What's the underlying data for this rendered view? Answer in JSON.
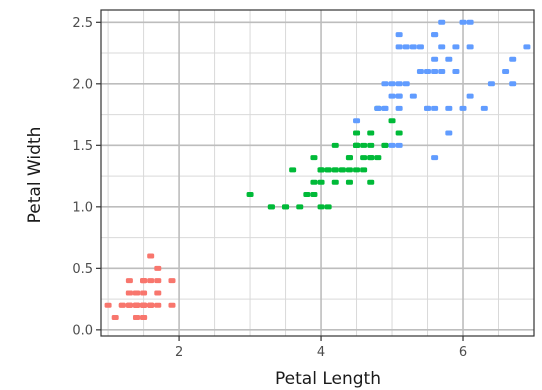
{
  "chart_data": {
    "type": "scatter",
    "title": "",
    "xlabel": "Petal Length",
    "ylabel": "Petal Width",
    "xlim": [
      0.9,
      7.0
    ],
    "ylim": [
      -0.05,
      2.6
    ],
    "x_ticks": [
      2,
      4,
      6
    ],
    "x_tick_labels": [
      "2",
      "4",
      "6"
    ],
    "y_ticks": [
      0.0,
      0.5,
      1.0,
      1.5,
      2.0,
      2.5
    ],
    "y_tick_labels": [
      "0.0",
      "0.5",
      "1.0",
      "1.5",
      "2.0",
      "2.5"
    ],
    "grid": true,
    "legend": "none",
    "series": [
      {
        "color": "#f8766d",
        "points": [
          [
            1.4,
            0.2
          ],
          [
            1.4,
            0.2
          ],
          [
            1.3,
            0.2
          ],
          [
            1.5,
            0.2
          ],
          [
            1.4,
            0.2
          ],
          [
            1.7,
            0.4
          ],
          [
            1.4,
            0.3
          ],
          [
            1.5,
            0.2
          ],
          [
            1.4,
            0.2
          ],
          [
            1.5,
            0.1
          ],
          [
            1.5,
            0.2
          ],
          [
            1.6,
            0.2
          ],
          [
            1.4,
            0.1
          ],
          [
            1.1,
            0.1
          ],
          [
            1.2,
            0.2
          ],
          [
            1.5,
            0.4
          ],
          [
            1.3,
            0.4
          ],
          [
            1.4,
            0.3
          ],
          [
            1.7,
            0.3
          ],
          [
            1.5,
            0.3
          ],
          [
            1.7,
            0.2
          ],
          [
            1.5,
            0.4
          ],
          [
            1.0,
            0.2
          ],
          [
            1.7,
            0.5
          ],
          [
            1.9,
            0.2
          ],
          [
            1.6,
            0.2
          ],
          [
            1.6,
            0.4
          ],
          [
            1.5,
            0.2
          ],
          [
            1.4,
            0.2
          ],
          [
            1.6,
            0.2
          ],
          [
            1.6,
            0.2
          ],
          [
            1.5,
            0.4
          ],
          [
            1.5,
            0.1
          ],
          [
            1.4,
            0.2
          ],
          [
            1.5,
            0.2
          ],
          [
            1.2,
            0.2
          ],
          [
            1.3,
            0.2
          ],
          [
            1.4,
            0.1
          ],
          [
            1.3,
            0.2
          ],
          [
            1.5,
            0.2
          ],
          [
            1.3,
            0.3
          ],
          [
            1.3,
            0.3
          ],
          [
            1.3,
            0.2
          ],
          [
            1.6,
            0.6
          ],
          [
            1.9,
            0.4
          ],
          [
            1.4,
            0.3
          ],
          [
            1.6,
            0.2
          ],
          [
            1.4,
            0.2
          ],
          [
            1.5,
            0.2
          ],
          [
            1.4,
            0.2
          ]
        ]
      },
      {
        "color": "#00ba38",
        "points": [
          [
            4.7,
            1.4
          ],
          [
            4.5,
            1.5
          ],
          [
            4.9,
            1.5
          ],
          [
            4.0,
            1.3
          ],
          [
            4.6,
            1.5
          ],
          [
            4.5,
            1.3
          ],
          [
            4.7,
            1.6
          ],
          [
            3.3,
            1.0
          ],
          [
            4.6,
            1.3
          ],
          [
            3.9,
            1.4
          ],
          [
            3.5,
            1.0
          ],
          [
            4.2,
            1.5
          ],
          [
            4.0,
            1.0
          ],
          [
            4.7,
            1.4
          ],
          [
            3.6,
            1.3
          ],
          [
            4.4,
            1.4
          ],
          [
            4.5,
            1.5
          ],
          [
            4.1,
            1.0
          ],
          [
            4.5,
            1.5
          ],
          [
            3.9,
            1.1
          ],
          [
            4.8,
            1.8
          ],
          [
            4.0,
            1.3
          ],
          [
            4.9,
            1.5
          ],
          [
            4.7,
            1.2
          ],
          [
            4.3,
            1.3
          ],
          [
            4.4,
            1.4
          ],
          [
            4.8,
            1.4
          ],
          [
            5.0,
            1.7
          ],
          [
            4.5,
            1.5
          ],
          [
            3.5,
            1.0
          ],
          [
            3.8,
            1.1
          ],
          [
            3.7,
            1.0
          ],
          [
            3.9,
            1.2
          ],
          [
            5.1,
            1.6
          ],
          [
            4.5,
            1.5
          ],
          [
            4.5,
            1.6
          ],
          [
            4.7,
            1.5
          ],
          [
            4.4,
            1.3
          ],
          [
            4.1,
            1.3
          ],
          [
            4.0,
            1.3
          ],
          [
            4.4,
            1.2
          ],
          [
            4.6,
            1.4
          ],
          [
            4.0,
            1.2
          ],
          [
            3.3,
            1.0
          ],
          [
            4.2,
            1.3
          ],
          [
            4.2,
            1.2
          ],
          [
            4.2,
            1.3
          ],
          [
            4.3,
            1.3
          ],
          [
            3.0,
            1.1
          ],
          [
            4.1,
            1.3
          ]
        ]
      },
      {
        "color": "#619cff",
        "points": [
          [
            6.0,
            2.5
          ],
          [
            5.1,
            1.9
          ],
          [
            5.9,
            2.1
          ],
          [
            5.6,
            1.8
          ],
          [
            5.8,
            2.2
          ],
          [
            6.6,
            2.1
          ],
          [
            4.5,
            1.7
          ],
          [
            6.3,
            1.8
          ],
          [
            5.8,
            1.8
          ],
          [
            6.1,
            2.5
          ],
          [
            5.1,
            2.0
          ],
          [
            5.3,
            1.9
          ],
          [
            5.5,
            2.1
          ],
          [
            5.0,
            2.0
          ],
          [
            5.1,
            2.4
          ],
          [
            5.3,
            2.3
          ],
          [
            5.5,
            1.8
          ],
          [
            6.7,
            2.2
          ],
          [
            6.9,
            2.3
          ],
          [
            5.0,
            1.5
          ],
          [
            5.7,
            2.3
          ],
          [
            4.9,
            2.0
          ],
          [
            6.7,
            2.0
          ],
          [
            4.9,
            1.8
          ],
          [
            5.7,
            2.1
          ],
          [
            6.0,
            1.8
          ],
          [
            4.8,
            1.8
          ],
          [
            4.9,
            1.8
          ],
          [
            5.6,
            2.1
          ],
          [
            5.8,
            1.6
          ],
          [
            6.1,
            1.9
          ],
          [
            6.4,
            2.0
          ],
          [
            5.6,
            2.2
          ],
          [
            5.1,
            1.5
          ],
          [
            5.6,
            1.4
          ],
          [
            6.1,
            2.3
          ],
          [
            5.6,
            2.4
          ],
          [
            5.5,
            1.8
          ],
          [
            4.8,
            1.8
          ],
          [
            5.4,
            2.1
          ],
          [
            5.6,
            2.4
          ],
          [
            5.1,
            2.3
          ],
          [
            5.1,
            1.9
          ],
          [
            5.9,
            2.3
          ],
          [
            5.7,
            2.5
          ],
          [
            5.2,
            2.3
          ],
          [
            5.0,
            1.9
          ],
          [
            5.2,
            2.0
          ],
          [
            5.4,
            2.3
          ],
          [
            5.1,
            1.8
          ]
        ]
      }
    ]
  }
}
